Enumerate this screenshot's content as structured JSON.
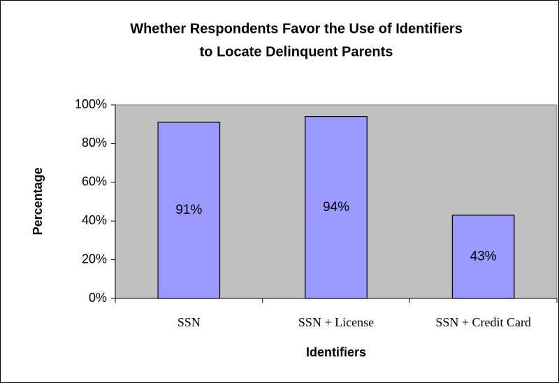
{
  "chart_data": {
    "type": "bar",
    "title": [
      "Whether Respondents Favor the Use of Identifiers",
      "to Locate Delinquent Parents"
    ],
    "x_label": "Identifiers",
    "y_label": "Percentage",
    "categories": [
      "SSN",
      "SSN + License",
      "SSN + Credit Card"
    ],
    "values": [
      91,
      94,
      43
    ],
    "value_labels": [
      "91%",
      "94%",
      "43%"
    ],
    "color": "#9999ff",
    "plot_background": "#c0c0c0",
    "ylim": [
      0,
      100
    ],
    "yticks": [
      {
        "value": 0,
        "label": "0%"
      },
      {
        "value": 20,
        "label": "20%"
      },
      {
        "value": 40,
        "label": "40%"
      },
      {
        "value": 60,
        "label": "60%"
      },
      {
        "value": 80,
        "label": "80%"
      },
      {
        "value": 100,
        "label": "100%"
      }
    ],
    "grid": false
  }
}
